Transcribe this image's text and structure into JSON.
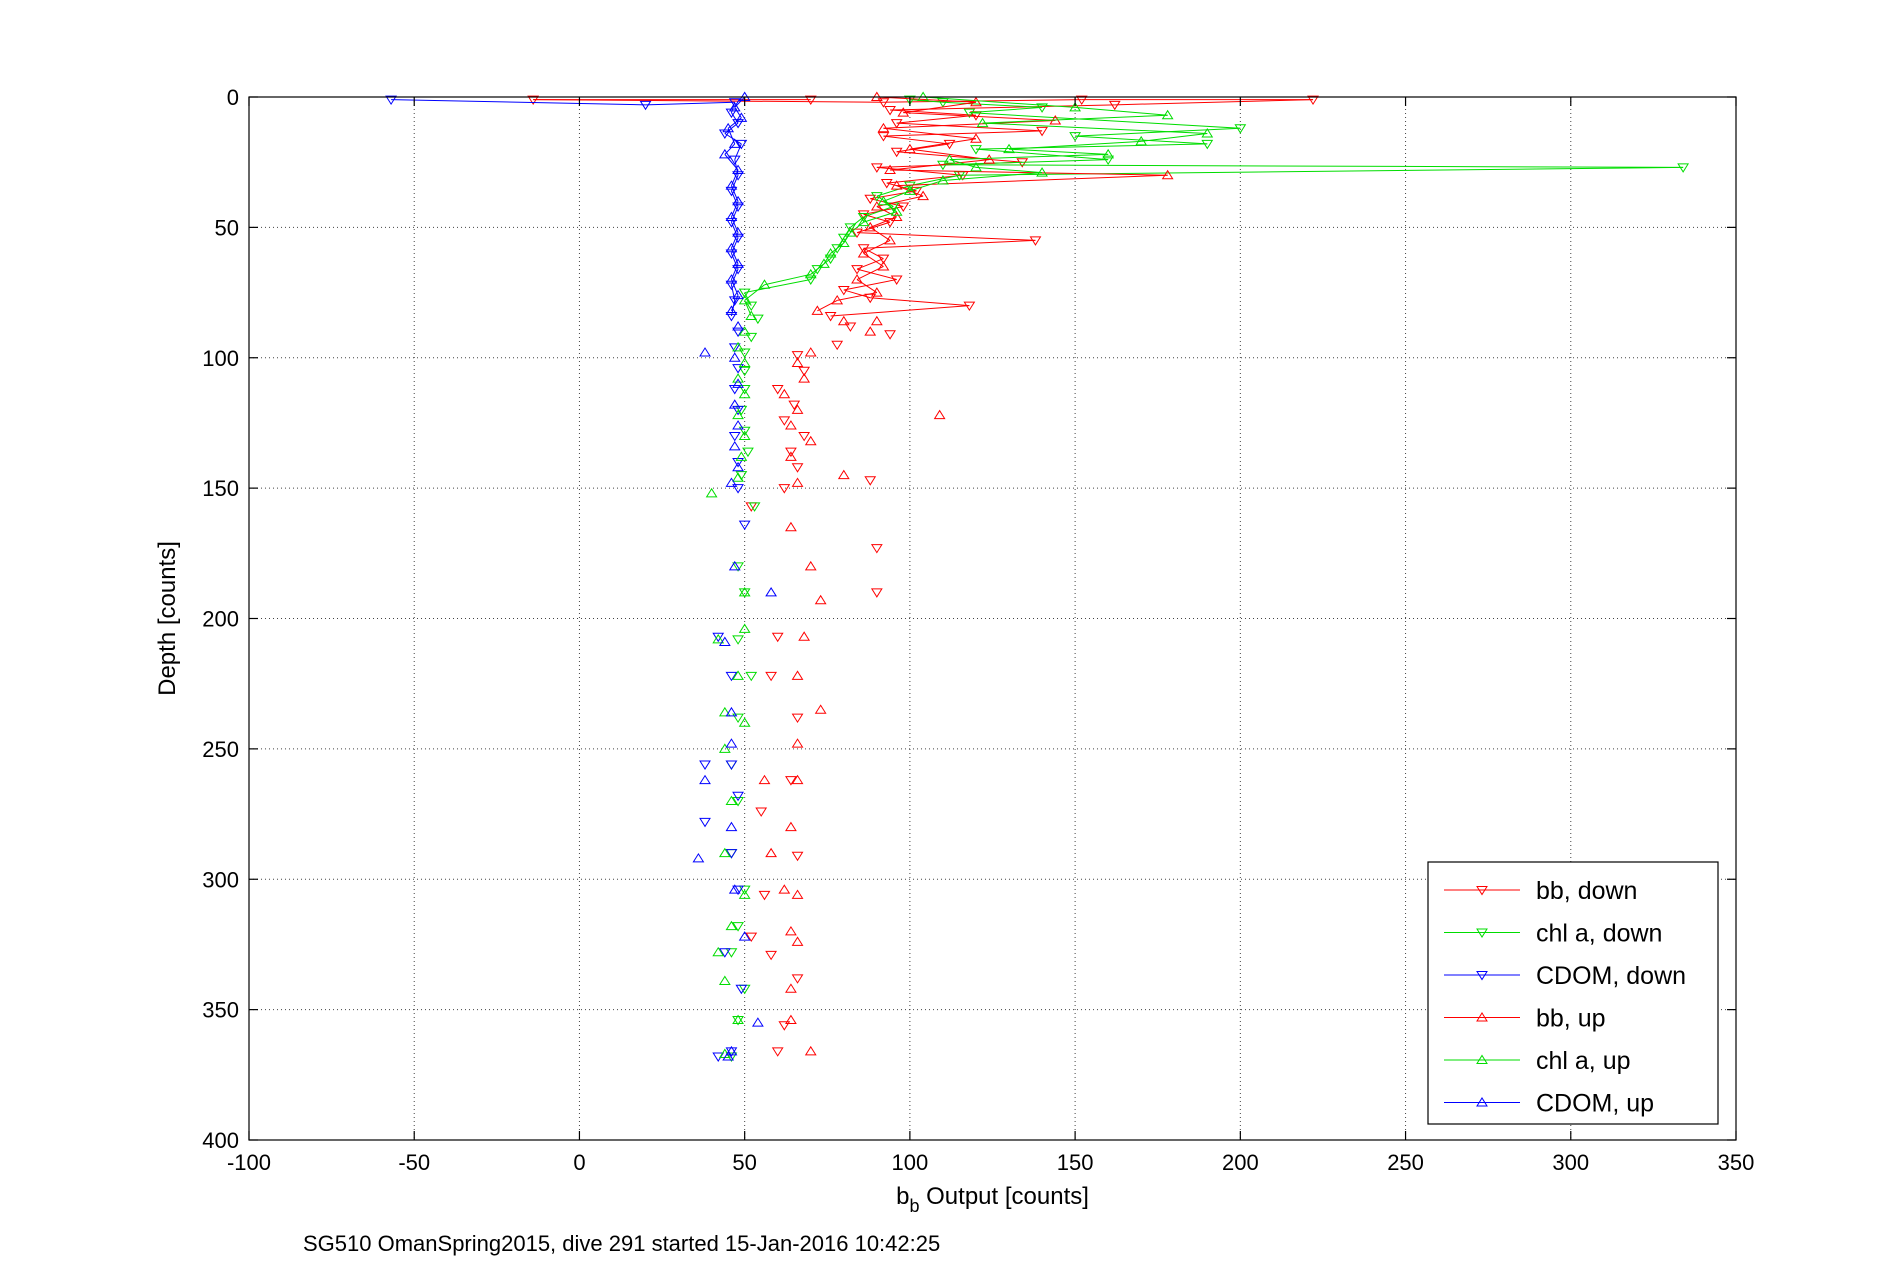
{
  "chart_data": {
    "type": "line",
    "title": "",
    "xlabel_main": "b",
    "xlabel_sub": "b",
    "xlabel_rest": " Output [counts]",
    "ylabel": "Depth [counts]",
    "caption": "SG510 OmanSpring2015, dive 291 started 15-Jan-2016 10:42:25",
    "xlim": [
      -100,
      350
    ],
    "ylim": [
      0,
      400
    ],
    "y_reversed": true,
    "grid": true,
    "legend_position": "bottom-right",
    "x_ticks": [
      -100,
      -50,
      0,
      50,
      100,
      150,
      200,
      250,
      300,
      350
    ],
    "x_tick_labels": [
      "-100",
      "-50",
      "0",
      "50",
      "100",
      "150",
      "200",
      "250",
      "300",
      "350"
    ],
    "y_ticks": [
      0,
      50,
      100,
      150,
      200,
      250,
      300,
      350,
      400
    ],
    "y_tick_labels": [
      "0",
      "50",
      "100",
      "150",
      "200",
      "250",
      "300",
      "350",
      "400"
    ],
    "series": [
      {
        "name": "bb, down",
        "color": "#ff0000",
        "marker": "triangle-down",
        "points": [
          [
            70,
            1
          ],
          [
            -14,
            1
          ],
          [
            92,
            2
          ],
          [
            152,
            1
          ],
          [
            222,
            1
          ],
          [
            162,
            3
          ],
          [
            94,
            5
          ],
          [
            120,
            7
          ],
          [
            96,
            10
          ],
          [
            140,
            13
          ],
          [
            92,
            15
          ],
          [
            112,
            18
          ],
          [
            96,
            21
          ],
          [
            134,
            25
          ],
          [
            90,
            27
          ],
          [
            116,
            30
          ],
          [
            93,
            33
          ],
          [
            102,
            36
          ],
          [
            88,
            39
          ],
          [
            98,
            42
          ],
          [
            86,
            45
          ],
          [
            94,
            48
          ],
          [
            84,
            52
          ],
          [
            138,
            55
          ],
          [
            86,
            58
          ],
          [
            92,
            62
          ],
          [
            84,
            66
          ],
          [
            96,
            70
          ],
          [
            80,
            74
          ],
          [
            88,
            77
          ],
          [
            118,
            80
          ],
          [
            76,
            84
          ],
          [
            82,
            88
          ],
          [
            94,
            91
          ],
          [
            78,
            95
          ],
          [
            66,
            99
          ],
          [
            68,
            105
          ],
          [
            60,
            112
          ],
          [
            65,
            118
          ],
          [
            62,
            124
          ],
          [
            68,
            130
          ],
          [
            64,
            136
          ],
          [
            66,
            142
          ],
          [
            88,
            147
          ],
          [
            62,
            150
          ],
          [
            52,
            157
          ],
          [
            90,
            173
          ],
          [
            90,
            190
          ],
          [
            60,
            207
          ],
          [
            58,
            222
          ],
          [
            66,
            238
          ],
          [
            64,
            262
          ],
          [
            55,
            274
          ],
          [
            66,
            291
          ],
          [
            56,
            306
          ],
          [
            52,
            322
          ],
          [
            58,
            329
          ],
          [
            66,
            338
          ],
          [
            62,
            356
          ],
          [
            60,
            366
          ]
        ]
      },
      {
        "name": "chl a, down",
        "color": "#00dd00",
        "marker": "triangle-down",
        "points": [
          [
            100,
            1
          ],
          [
            110,
            2
          ],
          [
            140,
            4
          ],
          [
            118,
            6
          ],
          [
            200,
            12
          ],
          [
            150,
            15
          ],
          [
            190,
            18
          ],
          [
            120,
            20
          ],
          [
            160,
            24
          ],
          [
            110,
            26
          ],
          [
            334,
            27
          ],
          [
            115,
            30
          ],
          [
            100,
            34
          ],
          [
            90,
            38
          ],
          [
            95,
            42
          ],
          [
            86,
            46
          ],
          [
            82,
            50
          ],
          [
            80,
            54
          ],
          [
            78,
            58
          ],
          [
            76,
            62
          ],
          [
            72,
            66
          ],
          [
            70,
            70
          ],
          [
            50,
            75
          ],
          [
            52,
            80
          ],
          [
            54,
            85
          ],
          [
            52,
            92
          ],
          [
            50,
            98
          ],
          [
            50,
            105
          ],
          [
            50,
            112
          ],
          [
            49,
            120
          ],
          [
            50,
            128
          ],
          [
            51,
            136
          ],
          [
            49,
            145
          ],
          [
            53,
            157
          ],
          [
            48,
            180
          ],
          [
            50,
            190
          ],
          [
            48,
            208
          ],
          [
            52,
            222
          ],
          [
            48,
            238
          ],
          [
            46,
            256
          ],
          [
            48,
            270
          ],
          [
            46,
            290
          ],
          [
            50,
            304
          ],
          [
            48,
            318
          ],
          [
            46,
            328
          ],
          [
            50,
            342
          ],
          [
            48,
            354
          ],
          [
            46,
            368
          ]
        ]
      },
      {
        "name": "CDOM, down",
        "color": "#0000ff",
        "marker": "triangle-down",
        "points": [
          [
            -57,
            1
          ],
          [
            20,
            3
          ],
          [
            47,
            2
          ],
          [
            46,
            6
          ],
          [
            48,
            10
          ],
          [
            44,
            14
          ],
          [
            49,
            18
          ],
          [
            47,
            24
          ],
          [
            48,
            30
          ],
          [
            46,
            36
          ],
          [
            48,
            42
          ],
          [
            46,
            48
          ],
          [
            48,
            54
          ],
          [
            46,
            60
          ],
          [
            48,
            66
          ],
          [
            46,
            72
          ],
          [
            47,
            78
          ],
          [
            46,
            84
          ],
          [
            48,
            90
          ],
          [
            47,
            96
          ],
          [
            48,
            104
          ],
          [
            47,
            112
          ],
          [
            48,
            120
          ],
          [
            47,
            130
          ],
          [
            48,
            140
          ],
          [
            48,
            150
          ],
          [
            50,
            164
          ],
          [
            42,
            207
          ],
          [
            46,
            222
          ],
          [
            46,
            256
          ],
          [
            38,
            256
          ],
          [
            48,
            268
          ],
          [
            38,
            278
          ],
          [
            46,
            290
          ],
          [
            48,
            304
          ],
          [
            44,
            328
          ],
          [
            49,
            342
          ],
          [
            46,
            366
          ],
          [
            42,
            368
          ]
        ]
      },
      {
        "name": "bb, up",
        "color": "#ff0000",
        "marker": "triangle-up",
        "points": [
          [
            90,
            0
          ],
          [
            120,
            2
          ],
          [
            98,
            6
          ],
          [
            144,
            9
          ],
          [
            92,
            12
          ],
          [
            120,
            16
          ],
          [
            100,
            20
          ],
          [
            124,
            24
          ],
          [
            94,
            28
          ],
          [
            178,
            30
          ],
          [
            96,
            34
          ],
          [
            104,
            38
          ],
          [
            90,
            42
          ],
          [
            96,
            46
          ],
          [
            88,
            50
          ],
          [
            94,
            55
          ],
          [
            86,
            60
          ],
          [
            92,
            65
          ],
          [
            84,
            70
          ],
          [
            90,
            75
          ],
          [
            78,
            78
          ],
          [
            72,
            82
          ],
          [
            80,
            86
          ],
          [
            88,
            90
          ],
          [
            90,
            86
          ],
          [
            70,
            98
          ],
          [
            66,
            102
          ],
          [
            68,
            108
          ],
          [
            62,
            114
          ],
          [
            66,
            120
          ],
          [
            109,
            122
          ],
          [
            64,
            126
          ],
          [
            70,
            132
          ],
          [
            64,
            138
          ],
          [
            80,
            145
          ],
          [
            66,
            148
          ],
          [
            64,
            165
          ],
          [
            70,
            180
          ],
          [
            73,
            193
          ],
          [
            68,
            207
          ],
          [
            66,
            222
          ],
          [
            73,
            235
          ],
          [
            66,
            248
          ],
          [
            56,
            262
          ],
          [
            66,
            262
          ],
          [
            64,
            280
          ],
          [
            58,
            290
          ],
          [
            62,
            304
          ],
          [
            66,
            306
          ],
          [
            64,
            320
          ],
          [
            66,
            324
          ],
          [
            64,
            342
          ],
          [
            64,
            354
          ],
          [
            70,
            366
          ]
        ]
      },
      {
        "name": "chl a, up",
        "color": "#00dd00",
        "marker": "triangle-up",
        "points": [
          [
            104,
            0
          ],
          [
            150,
            4
          ],
          [
            178,
            7
          ],
          [
            122,
            10
          ],
          [
            190,
            14
          ],
          [
            170,
            17
          ],
          [
            130,
            20
          ],
          [
            160,
            22
          ],
          [
            112,
            24
          ],
          [
            120,
            27
          ],
          [
            140,
            29
          ],
          [
            110,
            32
          ],
          [
            100,
            36
          ],
          [
            92,
            40
          ],
          [
            96,
            44
          ],
          [
            86,
            48
          ],
          [
            82,
            52
          ],
          [
            80,
            56
          ],
          [
            76,
            60
          ],
          [
            74,
            64
          ],
          [
            70,
            68
          ],
          [
            56,
            72
          ],
          [
            50,
            78
          ],
          [
            52,
            84
          ],
          [
            50,
            90
          ],
          [
            48,
            96
          ],
          [
            50,
            102
          ],
          [
            48,
            108
          ],
          [
            50,
            114
          ],
          [
            48,
            122
          ],
          [
            50,
            130
          ],
          [
            49,
            138
          ],
          [
            48,
            146
          ],
          [
            40,
            152
          ],
          [
            50,
            190
          ],
          [
            50,
            204
          ],
          [
            42,
            208
          ],
          [
            48,
            222
          ],
          [
            44,
            236
          ],
          [
            50,
            240
          ],
          [
            44,
            250
          ],
          [
            46,
            270
          ],
          [
            44,
            290
          ],
          [
            50,
            306
          ],
          [
            46,
            318
          ],
          [
            42,
            328
          ],
          [
            44,
            339
          ],
          [
            48,
            354
          ],
          [
            44,
            367
          ]
        ]
      },
      {
        "name": "CDOM, up",
        "color": "#0000ff",
        "marker": "triangle-up",
        "points": [
          [
            50,
            0
          ],
          [
            47,
            4
          ],
          [
            49,
            8
          ],
          [
            45,
            12
          ],
          [
            47,
            18
          ],
          [
            44,
            22
          ],
          [
            48,
            28
          ],
          [
            46,
            34
          ],
          [
            48,
            40
          ],
          [
            46,
            46
          ],
          [
            48,
            52
          ],
          [
            46,
            58
          ],
          [
            48,
            64
          ],
          [
            46,
            70
          ],
          [
            48,
            76
          ],
          [
            46,
            82
          ],
          [
            48,
            88
          ],
          [
            38,
            98
          ],
          [
            47,
            100
          ],
          [
            48,
            110
          ],
          [
            47,
            118
          ],
          [
            48,
            126
          ],
          [
            47,
            134
          ],
          [
            48,
            142
          ],
          [
            46,
            148
          ],
          [
            47,
            180
          ],
          [
            58,
            190
          ],
          [
            44,
            209
          ],
          [
            46,
            236
          ],
          [
            46,
            248
          ],
          [
            38,
            262
          ],
          [
            46,
            280
          ],
          [
            36,
            292
          ],
          [
            47,
            304
          ],
          [
            50,
            322
          ],
          [
            54,
            355
          ],
          [
            46,
            366
          ],
          [
            45,
            368
          ]
        ]
      }
    ],
    "legend": [
      "bb, down",
      "chl a, down",
      "CDOM, down",
      "bb, up",
      "chl a, up",
      "CDOM, up"
    ]
  }
}
